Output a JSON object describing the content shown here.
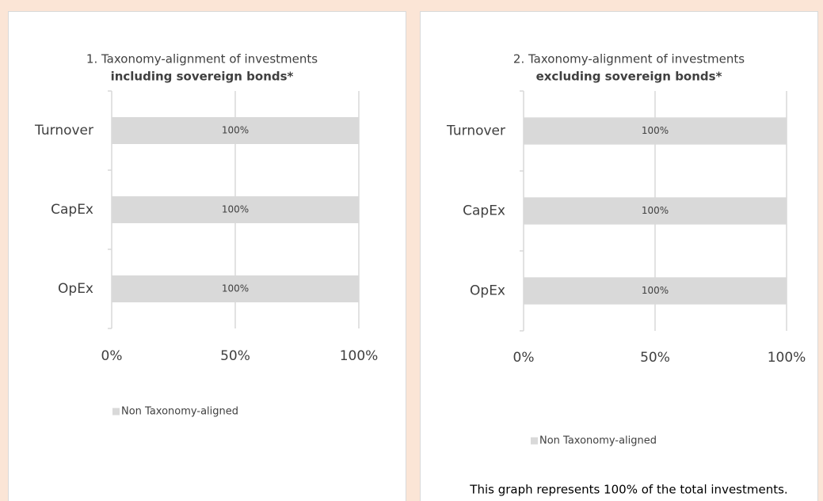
{
  "chart_data": [
    {
      "type": "bar",
      "orientation": "horizontal",
      "title": "1. Taxonomy-alignment of investments",
      "subtitle": "including sovereign bonds*",
      "categories": [
        "Turnover",
        "CapEx",
        "OpEx"
      ],
      "series": [
        {
          "name": "Non Taxonomy-aligned",
          "color": "#d9d9d9",
          "values": [
            100,
            100,
            100
          ],
          "value_labels": [
            "100%",
            "100%",
            "100%"
          ]
        }
      ],
      "xlim": [
        0,
        100
      ],
      "xticks": [
        {
          "value": 0,
          "label": "0%"
        },
        {
          "value": 50,
          "label": "50%"
        },
        {
          "value": 100,
          "label": "100%"
        }
      ],
      "grid": true,
      "legend": "bottom"
    },
    {
      "type": "bar",
      "orientation": "horizontal",
      "title": "2. Taxonomy-alignment of investments",
      "subtitle": "excluding sovereign bonds*",
      "categories": [
        "Turnover",
        "CapEx",
        "OpEx"
      ],
      "series": [
        {
          "name": "Non Taxonomy-aligned",
          "color": "#d9d9d9",
          "values": [
            100,
            100,
            100
          ],
          "value_labels": [
            "100%",
            "100%",
            "100%"
          ]
        }
      ],
      "xlim": [
        0,
        100
      ],
      "xticks": [
        {
          "value": 0,
          "label": "0%"
        },
        {
          "value": 50,
          "label": "50%"
        },
        {
          "value": 100,
          "label": "100%"
        }
      ],
      "grid": true,
      "legend": "bottom",
      "note": "This graph represents 100% of the total investments."
    }
  ]
}
